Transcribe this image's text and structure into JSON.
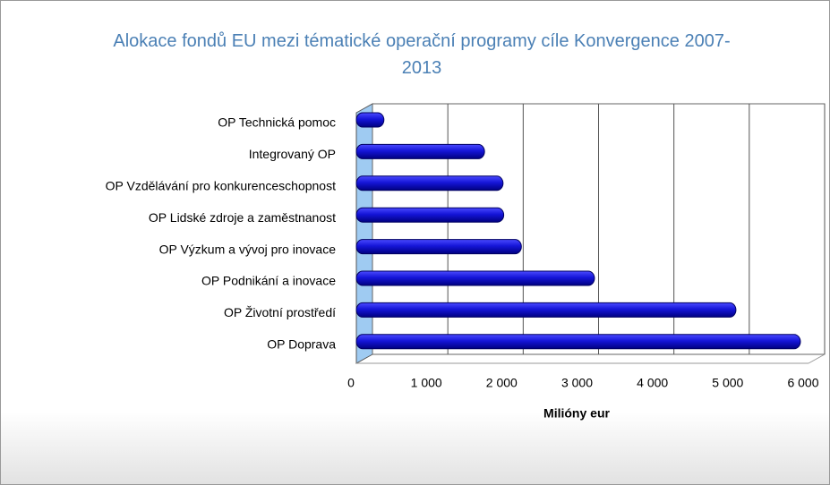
{
  "chart_data": {
    "type": "bar",
    "orientation": "horizontal",
    "title": "Alokace fondů EU mezi tématické operační programy cíle Konvergence 2007-2013",
    "categories": [
      "OP Technická pomoc",
      "Integrovaný OP",
      "OP Vzdělávání pro konkurenceschopnost",
      "OP Lidské zdroje a zaměstnanost",
      "OP Výzkum a vývoj pro inovace",
      "OP Podnikání a inovace",
      "OP Životní prostředí",
      "OP Doprava"
    ],
    "values": [
      247,
      1582,
      1828,
      1837,
      2071,
      3041,
      4918,
      5774
    ],
    "color": "#1a1adc",
    "xlabel": "Milióny eur",
    "xlim": [
      0,
      6000
    ],
    "xticks": [
      0,
      {
        "value": 1000,
        "label": "1 000"
      },
      {
        "value": 2000,
        "label": "2 000"
      },
      {
        "value": 3000,
        "label": "3 000"
      },
      {
        "value": 4000,
        "label": "4 000"
      },
      {
        "value": 5000,
        "label": "5 000"
      },
      {
        "value": 6000,
        "label": "6 000"
      }
    ],
    "grid": true
  }
}
